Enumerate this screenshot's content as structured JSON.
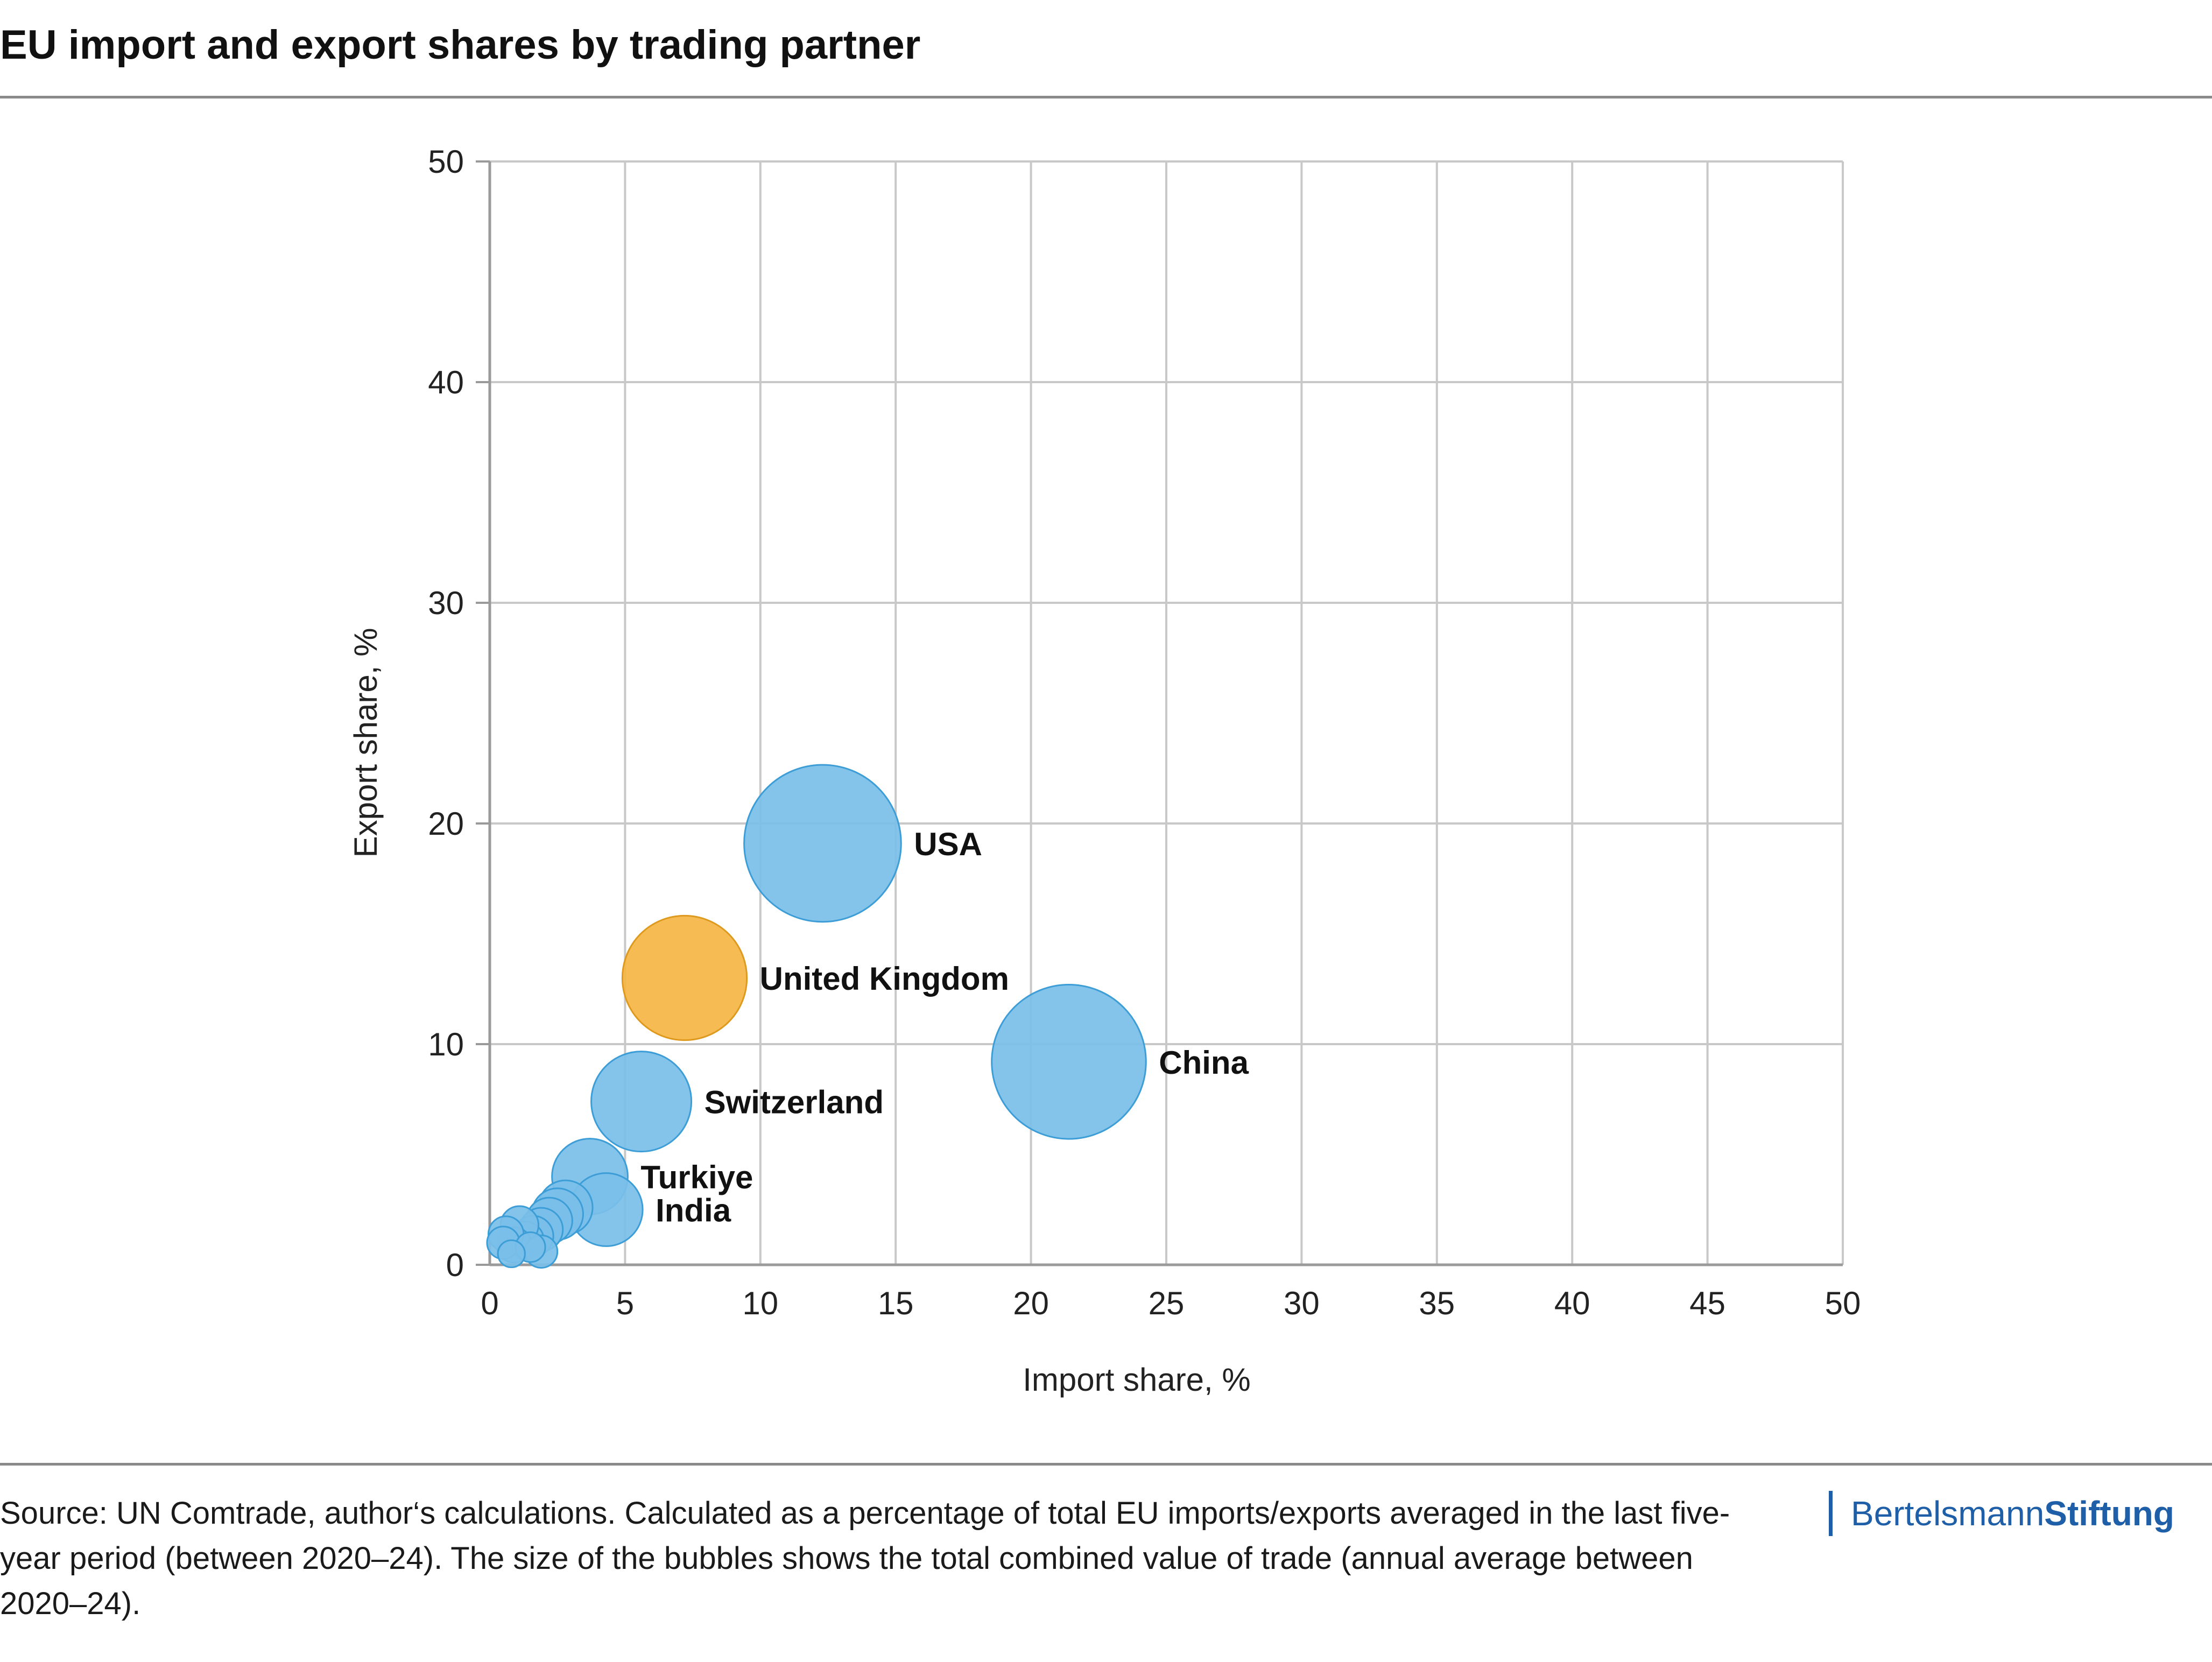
{
  "title": "EU import and export shares by trading partner",
  "source": "Source: UN Comtrade, author‘s calculations. Calculated as a percentage of total EU imports/exports averaged in the last five-year period (between 2020–24). The size of the bubbles shows the total combined value of trade (annual average between 2020–24).",
  "brand": {
    "part1": "Bertelsmann",
    "part2": "Stiftung"
  },
  "colors": {
    "blue": "#79bfe9",
    "blue_stroke": "#3d9dd6",
    "orange": "#f5b544",
    "orange_stroke": "#dd9a1e",
    "grid": "#c8c8c8",
    "axis": "#9a9a9a"
  },
  "chart_data": {
    "type": "bubble",
    "xlabel": "Import share, %",
    "ylabel": "Export share, %",
    "xlim": [
      0,
      50
    ],
    "ylim": [
      0,
      50
    ],
    "xticks": [
      0,
      5,
      10,
      15,
      20,
      25,
      30,
      35,
      40,
      45,
      50
    ],
    "yticks": [
      0,
      10,
      20,
      30,
      40,
      50
    ],
    "grid": true,
    "points": [
      {
        "label": "USA",
        "x": 12.3,
        "y": 19.1,
        "size": 5.8,
        "color": "blue"
      },
      {
        "label": "China",
        "x": 21.4,
        "y": 9.2,
        "size": 5.7,
        "color": "blue"
      },
      {
        "label": "United Kingdom",
        "x": 7.2,
        "y": 13.0,
        "size": 4.6,
        "color": "orange"
      },
      {
        "label": "Switzerland",
        "x": 5.6,
        "y": 7.4,
        "size": 3.7,
        "color": "blue"
      },
      {
        "label": "Turkiye",
        "x": 3.7,
        "y": 4.0,
        "size": 2.8,
        "color": "blue"
      },
      {
        "label": "India",
        "x": 4.3,
        "y": 2.5,
        "size": 2.7,
        "color": "blue"
      },
      {
        "label": "",
        "x": 2.8,
        "y": 2.6,
        "size": 2.0,
        "color": "blue"
      },
      {
        "label": "",
        "x": 2.5,
        "y": 2.3,
        "size": 1.9,
        "color": "blue"
      },
      {
        "label": "",
        "x": 2.2,
        "y": 2.0,
        "size": 1.7,
        "color": "blue"
      },
      {
        "label": "",
        "x": 1.9,
        "y": 1.6,
        "size": 1.6,
        "color": "blue"
      },
      {
        "label": "",
        "x": 1.6,
        "y": 1.3,
        "size": 1.5,
        "color": "blue"
      },
      {
        "label": "",
        "x": 1.3,
        "y": 1.1,
        "size": 1.4,
        "color": "blue"
      },
      {
        "label": "",
        "x": 1.1,
        "y": 1.8,
        "size": 1.4,
        "color": "blue"
      },
      {
        "label": "",
        "x": 0.9,
        "y": 0.9,
        "size": 1.3,
        "color": "blue"
      },
      {
        "label": "",
        "x": 0.6,
        "y": 1.4,
        "size": 1.3,
        "color": "blue"
      },
      {
        "label": "",
        "x": 0.5,
        "y": 1.0,
        "size": 1.2,
        "color": "blue"
      },
      {
        "label": "",
        "x": 1.9,
        "y": 0.6,
        "size": 1.2,
        "color": "blue"
      },
      {
        "label": "",
        "x": 0.8,
        "y": 0.5,
        "size": 1.0,
        "color": "blue"
      },
      {
        "label": "",
        "x": 1.5,
        "y": 0.8,
        "size": 1.1,
        "color": "blue"
      }
    ]
  }
}
